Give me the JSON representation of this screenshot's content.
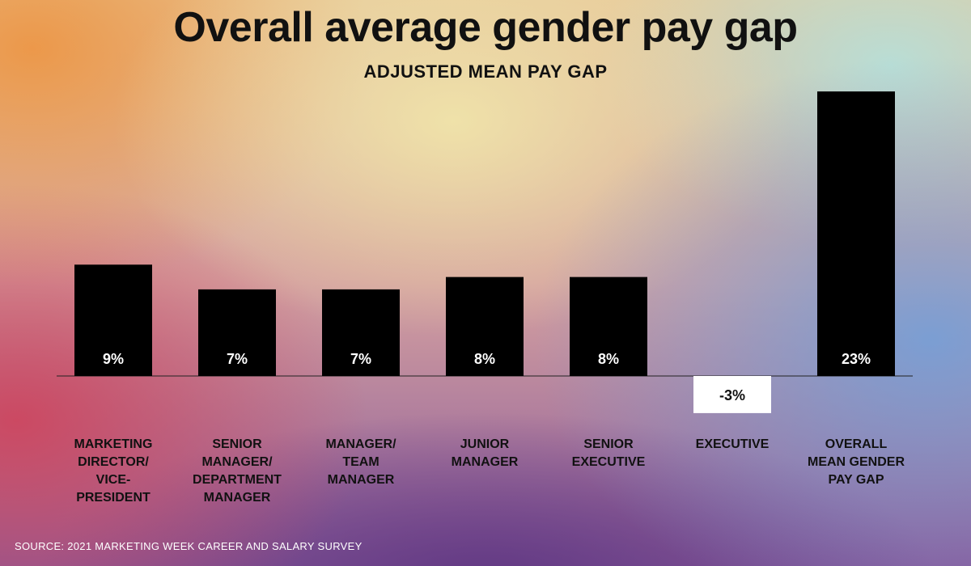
{
  "title": "Overall average gender pay gap",
  "subtitle": "ADJUSTED MEAN PAY GAP",
  "source": "SOURCE: 2021 MARKETING WEEK CAREER AND SALARY SURVEY",
  "colors": {
    "bar": "#000000",
    "negative_bar": "#ffffff",
    "bar_text": "#ffffff",
    "negative_text": "#111111"
  },
  "chart_data": {
    "type": "bar",
    "title": "Overall average gender pay gap",
    "subtitle": "ADJUSTED MEAN PAY GAP",
    "xlabel": "",
    "ylabel": "",
    "grid": false,
    "legend": "none",
    "categories": [
      "MARKETING\nDIRECTOR/\nVICE-\nPRESIDENT",
      "SENIOR\nMANAGER/\nDEPARTMENT\nMANAGER",
      "MANAGER/\nTEAM\nMANAGER",
      "JUNIOR\nMANAGER",
      "SENIOR\nEXECUTIVE",
      "EXECUTIVE",
      "OVERALL\nMEAN GENDER\nPAY GAP"
    ],
    "values": [
      9,
      7,
      7,
      8,
      8,
      -3,
      23
    ],
    "data_labels": [
      "9%",
      "7%",
      "7%",
      "8%",
      "8%",
      "-3%",
      "23%"
    ],
    "ylim": [
      -3,
      23
    ]
  }
}
